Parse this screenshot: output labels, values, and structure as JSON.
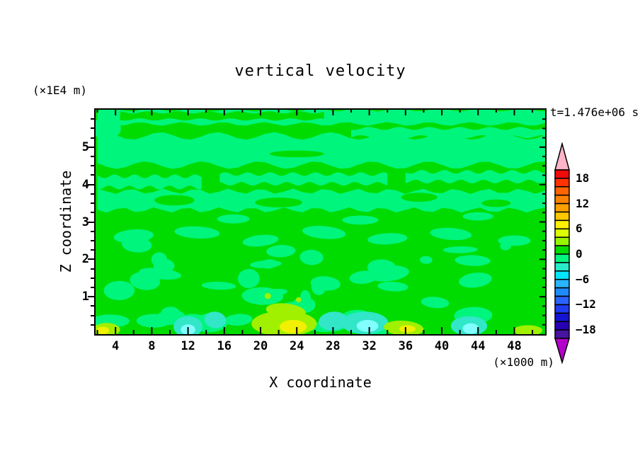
{
  "chart_data": {
    "type": "filled-contour",
    "title": "vertical velocity",
    "timestamp": "t=1.476e+06 s",
    "xlabel": "X coordinate",
    "ylabel": "Z coordinate",
    "x_units": "(×1000 m)",
    "y_units": "(×1E4 m)",
    "x_range": [
      1.8,
      51.4
    ],
    "y_range": [
      0,
      6
    ],
    "x_ticks_major": [
      4,
      8,
      12,
      16,
      20,
      24,
      28,
      32,
      36,
      40,
      44,
      48
    ],
    "x_ticks_minor": [
      2,
      6,
      10,
      14,
      18,
      22,
      26,
      30,
      34,
      38,
      42,
      46,
      50
    ],
    "y_ticks_major": [
      1,
      2,
      3,
      4,
      5
    ],
    "y_minor_step": 0.25,
    "grid": false,
    "legend_position": "right-colorbar",
    "colorbar": {
      "ticks": [
        {
          "v": 18,
          "label": "18"
        },
        {
          "v": 12,
          "label": "12"
        },
        {
          "v": 6,
          "label": "6"
        },
        {
          "v": 0,
          "label": "0"
        },
        {
          "v": -6,
          "label": "−6"
        },
        {
          "v": -12,
          "label": "−12"
        },
        {
          "v": -18,
          "label": "−18"
        }
      ],
      "level_max": 20,
      "level_min": -20,
      "level_step": 2,
      "cell_colors_top_to_bottom": [
        "#F00A0A",
        "#FF3200",
        "#FF6400",
        "#FF8200",
        "#FFA000",
        "#FFC800",
        "#FFF000",
        "#DCFF00",
        "#96F500",
        "#00DC00",
        "#00F57D",
        "#28EBC8",
        "#00E6FF",
        "#28B4FF",
        "#1E8CFF",
        "#2864FF",
        "#1E3CF0",
        "#1414D2",
        "#2800B4",
        "#4614A0"
      ],
      "over_range_arrow_color": "#FFB4C8",
      "under_range_arrow_color": "#B400C8"
    },
    "field_description": "Horizontal wavy streaks of weak upward (green, 0 to +2) and weak downward (spring green, -2 to 0) vertical velocity in the upper layers; turbulent mixed region below z=2.5e4 m with stronger downdraft patches (aquamarine/cyan, -6 to -2) and updraft patches (chartreuse/yellow, +2 to +8) near the surface.",
    "field": {
      "palette": {
        "green": "#00DC00",
        "spring": "#00F57D",
        "aqua": "#32E6C8",
        "cyan": "#82FFFF",
        "chartreuse": "#A0F000",
        "yellow": "#F0F000"
      },
      "base": "green",
      "bands": [
        {
          "x0": 2,
          "x1": 51.4,
          "y0": 5.62,
          "y1": 6.0,
          "amp": 0.05,
          "freq": 0.22,
          "ph": 0,
          "c": "spring"
        },
        {
          "x0": 2,
          "x1": 51.4,
          "y0": 4.52,
          "y1": 5.3,
          "amp": 0.1,
          "freq": 0.16,
          "ph": 2,
          "c": "spring"
        },
        {
          "x0": 30,
          "x1": 51.4,
          "y0": 5.28,
          "y1": 5.5,
          "amp": 0.04,
          "freq": 0.3,
          "ph": 1,
          "c": "spring"
        },
        {
          "x0": 4.5,
          "x1": 27,
          "y0": 5.74,
          "y1": 5.93,
          "amp": 0.03,
          "freq": 0.3,
          "ph": 3,
          "c": "green"
        },
        {
          "x0": 2,
          "x1": 13.5,
          "y0": 3.92,
          "y1": 4.22,
          "amp": 0.05,
          "freq": 0.45,
          "ph": 0,
          "c": "spring"
        },
        {
          "x0": 15.5,
          "x1": 34,
          "y0": 4.02,
          "y1": 4.28,
          "amp": 0.05,
          "freq": 0.4,
          "ph": 2,
          "c": "spring"
        },
        {
          "x0": 36,
          "x1": 51.4,
          "y0": 4.08,
          "y1": 4.34,
          "amp": 0.05,
          "freq": 0.4,
          "ph": 4,
          "c": "spring"
        },
        {
          "x0": 2,
          "x1": 51.4,
          "y0": 3.32,
          "y1": 3.82,
          "amp": 0.07,
          "freq": 0.28,
          "ph": 1,
          "c": "spring"
        }
      ],
      "scatter_blobs": {
        "seed": 11,
        "count": 42,
        "x_min": 2.2,
        "x_max": 51,
        "y_min": 0.18,
        "y_max": 2.4,
        "rx_min": 0.5,
        "rx_max": 2.4,
        "ry_min": 0.09,
        "ry_max": 0.26,
        "color": "spring"
      },
      "ellipses": [
        {
          "x": 3,
          "y": 5.5,
          "rx": 1.6,
          "ry": 0.3,
          "rot": 0,
          "c": "spring"
        },
        {
          "x": 10.5,
          "y": 3.58,
          "rx": 2.2,
          "ry": 0.14,
          "rot": 0,
          "c": "green"
        },
        {
          "x": 22,
          "y": 3.52,
          "rx": 2.6,
          "ry": 0.13,
          "rot": 0,
          "c": "green"
        },
        {
          "x": 37.5,
          "y": 3.66,
          "rx": 2.0,
          "ry": 0.12,
          "rot": 0,
          "c": "green"
        },
        {
          "x": 46,
          "y": 3.5,
          "rx": 1.6,
          "ry": 0.1,
          "rot": 0,
          "c": "green"
        },
        {
          "x": 24,
          "y": 4.82,
          "rx": 3.0,
          "ry": 0.09,
          "rot": 0,
          "c": "green"
        },
        {
          "x": 6,
          "y": 2.62,
          "rx": 2.2,
          "ry": 0.18,
          "rot": -4,
          "c": "spring"
        },
        {
          "x": 13,
          "y": 2.72,
          "rx": 2.5,
          "ry": 0.16,
          "rot": 3,
          "c": "spring"
        },
        {
          "x": 20,
          "y": 2.5,
          "rx": 2.0,
          "ry": 0.15,
          "rot": -6,
          "c": "spring"
        },
        {
          "x": 27,
          "y": 2.72,
          "rx": 2.4,
          "ry": 0.17,
          "rot": 5,
          "c": "spring"
        },
        {
          "x": 34,
          "y": 2.55,
          "rx": 2.2,
          "ry": 0.15,
          "rot": -3,
          "c": "spring"
        },
        {
          "x": 41,
          "y": 2.68,
          "rx": 2.3,
          "ry": 0.16,
          "rot": 4,
          "c": "spring"
        },
        {
          "x": 48,
          "y": 2.5,
          "rx": 1.8,
          "ry": 0.14,
          "rot": 0,
          "c": "spring"
        },
        {
          "x": 17,
          "y": 3.08,
          "rx": 1.8,
          "ry": 0.12,
          "rot": 0,
          "c": "spring"
        },
        {
          "x": 31,
          "y": 3.05,
          "rx": 2.0,
          "ry": 0.12,
          "rot": 0,
          "c": "spring"
        },
        {
          "x": 44,
          "y": 3.15,
          "rx": 1.7,
          "ry": 0.11,
          "rot": 0,
          "c": "spring"
        },
        {
          "x": 12,
          "y": 0.2,
          "rx": 1.6,
          "ry": 0.28,
          "rot": 0,
          "c": "aqua"
        },
        {
          "x": 15,
          "y": 0.38,
          "rx": 1.2,
          "ry": 0.22,
          "rot": 8,
          "c": "aqua"
        },
        {
          "x": 28,
          "y": 0.35,
          "rx": 1.6,
          "ry": 0.25,
          "rot": -6,
          "c": "aqua"
        },
        {
          "x": 31.5,
          "y": 0.3,
          "rx": 2.6,
          "ry": 0.3,
          "rot": 0,
          "c": "aqua"
        },
        {
          "x": 43,
          "y": 0.22,
          "rx": 2.0,
          "ry": 0.26,
          "rot": 0,
          "c": "aqua"
        },
        {
          "x": 12,
          "y": 0.12,
          "rx": 0.8,
          "ry": 0.14,
          "rot": 0,
          "c": "cyan"
        },
        {
          "x": 31.8,
          "y": 0.22,
          "rx": 1.2,
          "ry": 0.16,
          "rot": 0,
          "c": "cyan"
        },
        {
          "x": 43.2,
          "y": 0.15,
          "rx": 0.9,
          "ry": 0.14,
          "rot": 0,
          "c": "cyan"
        },
        {
          "x": 22.6,
          "y": 0.28,
          "rx": 3.6,
          "ry": 0.34,
          "rot": 0,
          "c": "chartreuse"
        },
        {
          "x": 22.8,
          "y": 0.62,
          "rx": 2.2,
          "ry": 0.2,
          "rot": 6,
          "c": "chartreuse"
        },
        {
          "x": 35.8,
          "y": 0.16,
          "rx": 2.2,
          "ry": 0.2,
          "rot": 4,
          "c": "chartreuse"
        },
        {
          "x": 3.0,
          "y": 0.12,
          "rx": 1.5,
          "ry": 0.18,
          "rot": 0,
          "c": "chartreuse"
        },
        {
          "x": 49.5,
          "y": 0.1,
          "rx": 1.6,
          "ry": 0.14,
          "rot": 0,
          "c": "chartreuse"
        },
        {
          "x": 20.8,
          "y": 1.02,
          "rx": 0.35,
          "ry": 0.08,
          "rot": 0,
          "c": "chartreuse"
        },
        {
          "x": 24.2,
          "y": 0.92,
          "rx": 0.3,
          "ry": 0.07,
          "rot": 0,
          "c": "chartreuse"
        },
        {
          "x": 23.6,
          "y": 0.2,
          "rx": 1.5,
          "ry": 0.18,
          "rot": 0,
          "c": "yellow"
        },
        {
          "x": 36.2,
          "y": 0.14,
          "rx": 0.9,
          "ry": 0.1,
          "rot": 0,
          "c": "yellow"
        },
        {
          "x": 2.6,
          "y": 0.1,
          "rx": 0.7,
          "ry": 0.1,
          "rot": 0,
          "c": "yellow"
        }
      ]
    }
  }
}
